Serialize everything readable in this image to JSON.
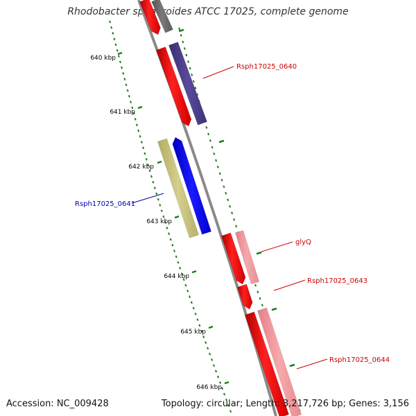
{
  "title": "Rhodobacter sphaeroides ATCC 17025, complete genome",
  "footer": {
    "accession": "Accession: NC_009428",
    "summary": "Topology: circular; Length: 3,217,726 bp; Genes: 3,156"
  },
  "colors": {
    "red_gene": "#ff0000",
    "pink_gene": "#f4979b",
    "purple_gene": "#4f3f8f",
    "blue_gene": "#0000ff",
    "olive_gene": "#c9c57c",
    "gray_gene": "#6d6d6d",
    "backbone": "#8a8a8a",
    "tick": "#1c7a1c",
    "label_red": "#cc0000",
    "label_blue": "#0000aa"
  },
  "kbp_labels": [
    "640 kbp",
    "641 kbp",
    "642 kbp",
    "643 kbp",
    "644 kbp",
    "645 kbp",
    "646 kbp"
  ],
  "gene_labels": [
    {
      "id": "Rsph17025_0640",
      "text": "Rsph17025_0640",
      "color": "red"
    },
    {
      "id": "Rsph17025_0641",
      "text": "Rsph17025_0641",
      "color": "blue"
    },
    {
      "id": "glyQ",
      "text": "glyQ",
      "color": "red"
    },
    {
      "id": "Rsph17025_0643",
      "text": "Rsph17025_0643",
      "color": "red"
    },
    {
      "id": "Rsph17025_0644",
      "text": "Rsph17025_0644",
      "color": "red"
    }
  ]
}
